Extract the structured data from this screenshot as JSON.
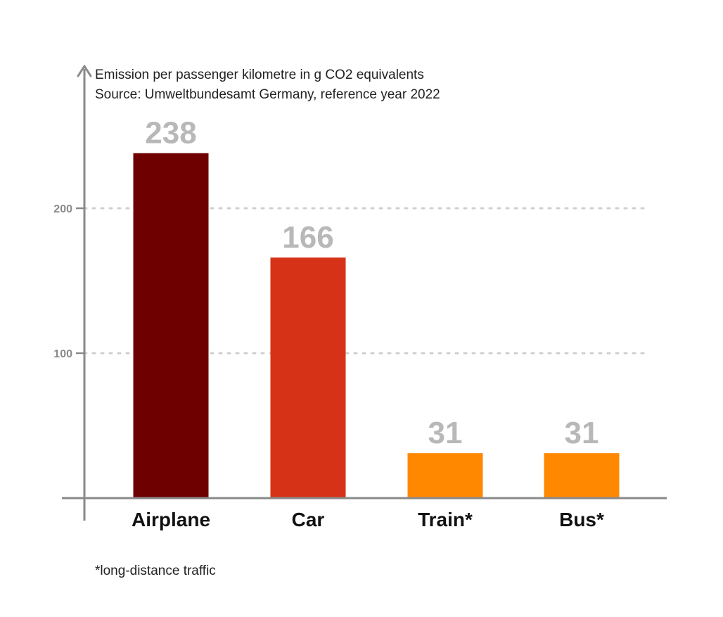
{
  "chart_data": {
    "type": "bar",
    "title": "Emission per passenger kilometre in g CO2 equivalents",
    "subtitle": "Source: Umweltbundesamt Germany, reference year 2022",
    "categories": [
      "Airplane",
      "Car",
      "Train*",
      "Bus*"
    ],
    "values": [
      238,
      166,
      31,
      31
    ],
    "colors": [
      "#6e0000",
      "#d63217",
      "#ff8800",
      "#ff8800"
    ],
    "yticks": [
      100,
      200
    ],
    "ylim": [
      0,
      250
    ],
    "grid": "dotted horizontal at ticks",
    "footnote": "*long-distance traffic"
  }
}
